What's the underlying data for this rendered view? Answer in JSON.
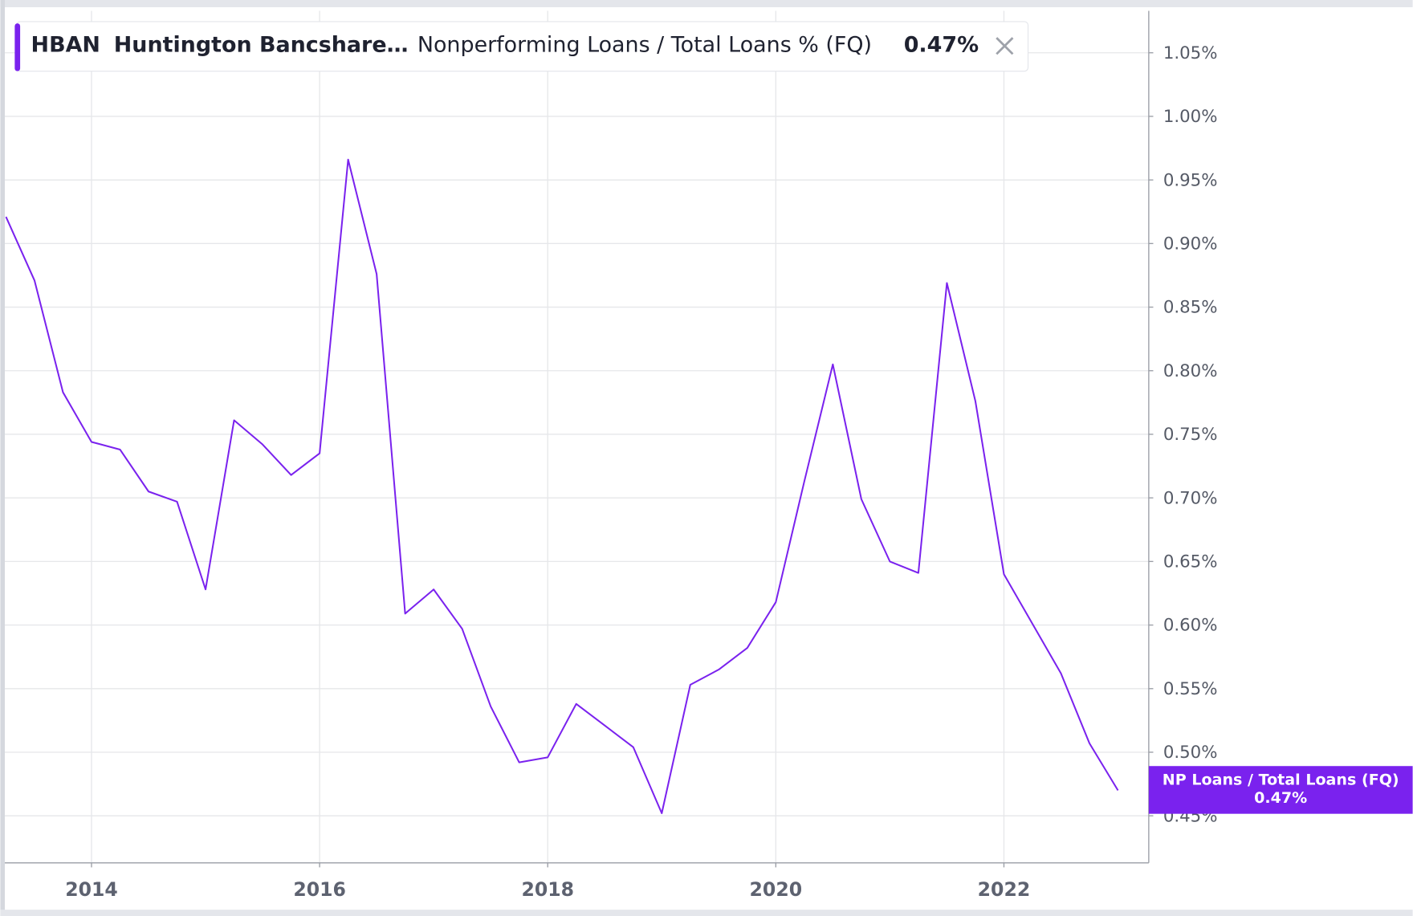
{
  "chart_data": {
    "type": "line",
    "header": {
      "ticker": "HBAN",
      "company": "Huntington Bancshare…",
      "metric": "Nonperforming Loans / Total Loans % (FQ)"
    },
    "x": [
      2013.25,
      2013.5,
      2013.75,
      2014.0,
      2014.25,
      2014.5,
      2014.75,
      2015.0,
      2015.25,
      2015.5,
      2015.75,
      2016.0,
      2016.25,
      2016.5,
      2016.75,
      2017.0,
      2017.25,
      2017.5,
      2017.75,
      2018.0,
      2018.25,
      2018.5,
      2018.75,
      2019.0,
      2019.25,
      2019.5,
      2019.75,
      2020.0,
      2020.25,
      2020.5,
      2020.75,
      2021.0,
      2021.25,
      2021.5,
      2021.75,
      2022.0,
      2022.25,
      2022.5,
      2022.75,
      2023.0
    ],
    "series": [
      {
        "name": "NP Loans / Total Loans (FQ)",
        "color": "#7a22ee",
        "values": [
          0.921,
          0.871,
          0.783,
          0.744,
          0.738,
          0.705,
          0.697,
          0.628,
          0.761,
          0.742,
          0.718,
          0.735,
          0.966,
          0.876,
          0.609,
          0.628,
          0.597,
          0.536,
          0.492,
          0.496,
          0.538,
          0.521,
          0.504,
          0.452,
          0.553,
          0.565,
          0.582,
          0.618,
          0.713,
          0.805,
          0.699,
          0.65,
          0.641,
          0.869,
          0.776,
          0.64,
          0.601,
          0.562,
          0.507,
          0.47
        ],
        "value_labels": [
          null,
          null,
          null,
          null,
          null,
          null,
          null,
          null,
          null,
          null,
          null,
          null,
          null,
          null,
          null,
          null,
          null,
          null,
          null,
          null,
          null,
          null,
          null,
          null,
          null,
          null,
          null,
          null,
          null,
          null,
          null,
          null,
          null,
          null,
          null,
          null,
          null,
          null,
          null,
          "0.47%"
        ]
      }
    ],
    "xlim": [
      2013.24,
      2023.27
    ],
    "xticks": [
      2014,
      2016,
      2018,
      2020,
      2022
    ],
    "ylim": [
      0.413,
      1.083
    ],
    "yticks": [
      {
        "value": 0.45,
        "label": "0.45%"
      },
      {
        "value": 0.5,
        "label": "0.50%"
      },
      {
        "value": 0.55,
        "label": "0.55%"
      },
      {
        "value": 0.6,
        "label": "0.60%"
      },
      {
        "value": 0.65,
        "label": "0.65%"
      },
      {
        "value": 0.7,
        "label": "0.70%"
      },
      {
        "value": 0.75,
        "label": "0.75%"
      },
      {
        "value": 0.8,
        "label": "0.80%"
      },
      {
        "value": 0.85,
        "label": "0.85%"
      },
      {
        "value": 0.9,
        "label": "0.90%"
      },
      {
        "value": 0.95,
        "label": "0.95%"
      },
      {
        "value": 1.0,
        "label": "1.00%"
      },
      {
        "value": 1.05,
        "label": "1.05%"
      }
    ],
    "grid": true
  }
}
